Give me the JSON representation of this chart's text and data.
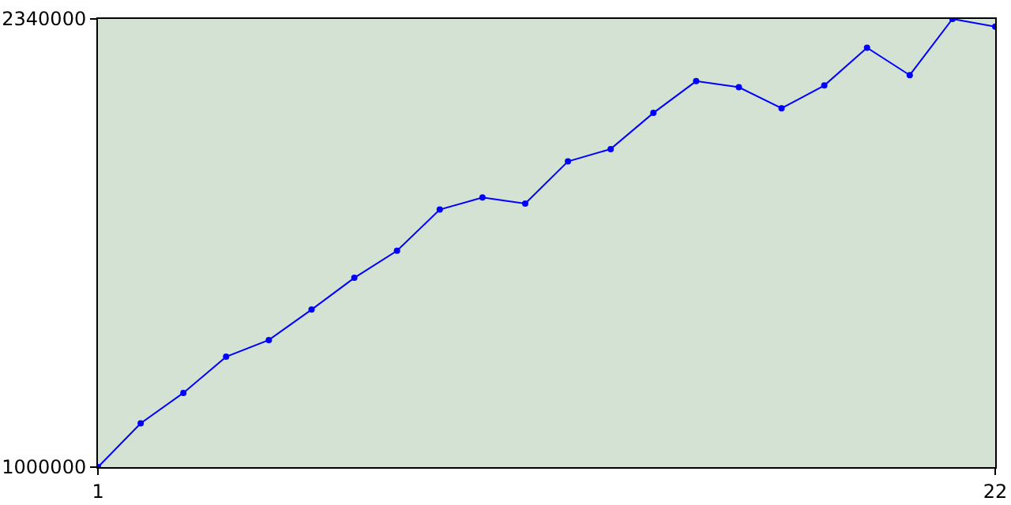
{
  "chart_data": {
    "type": "line",
    "x": [
      1,
      2,
      3,
      4,
      5,
      6,
      7,
      8,
      9,
      10,
      11,
      12,
      13,
      14,
      15,
      16,
      17,
      18,
      19,
      20,
      21,
      22
    ],
    "series": [
      {
        "color": "#0000ff",
        "values": [
          1000000,
          1131000,
          1222000,
          1330000,
          1380000,
          1471000,
          1566000,
          1647000,
          1770000,
          1806000,
          1788000,
          1914000,
          1951000,
          2059000,
          2154000,
          2136000,
          2073000,
          2141000,
          2254000,
          2172000,
          2340000,
          2317000
        ]
      }
    ],
    "xlim": [
      1,
      22
    ],
    "xticks": [
      1,
      22
    ],
    "ylim": [
      1000000,
      2340000
    ],
    "yticks": [
      1000000,
      2340000
    ],
    "marker": "circle",
    "line_style": "solid"
  }
}
